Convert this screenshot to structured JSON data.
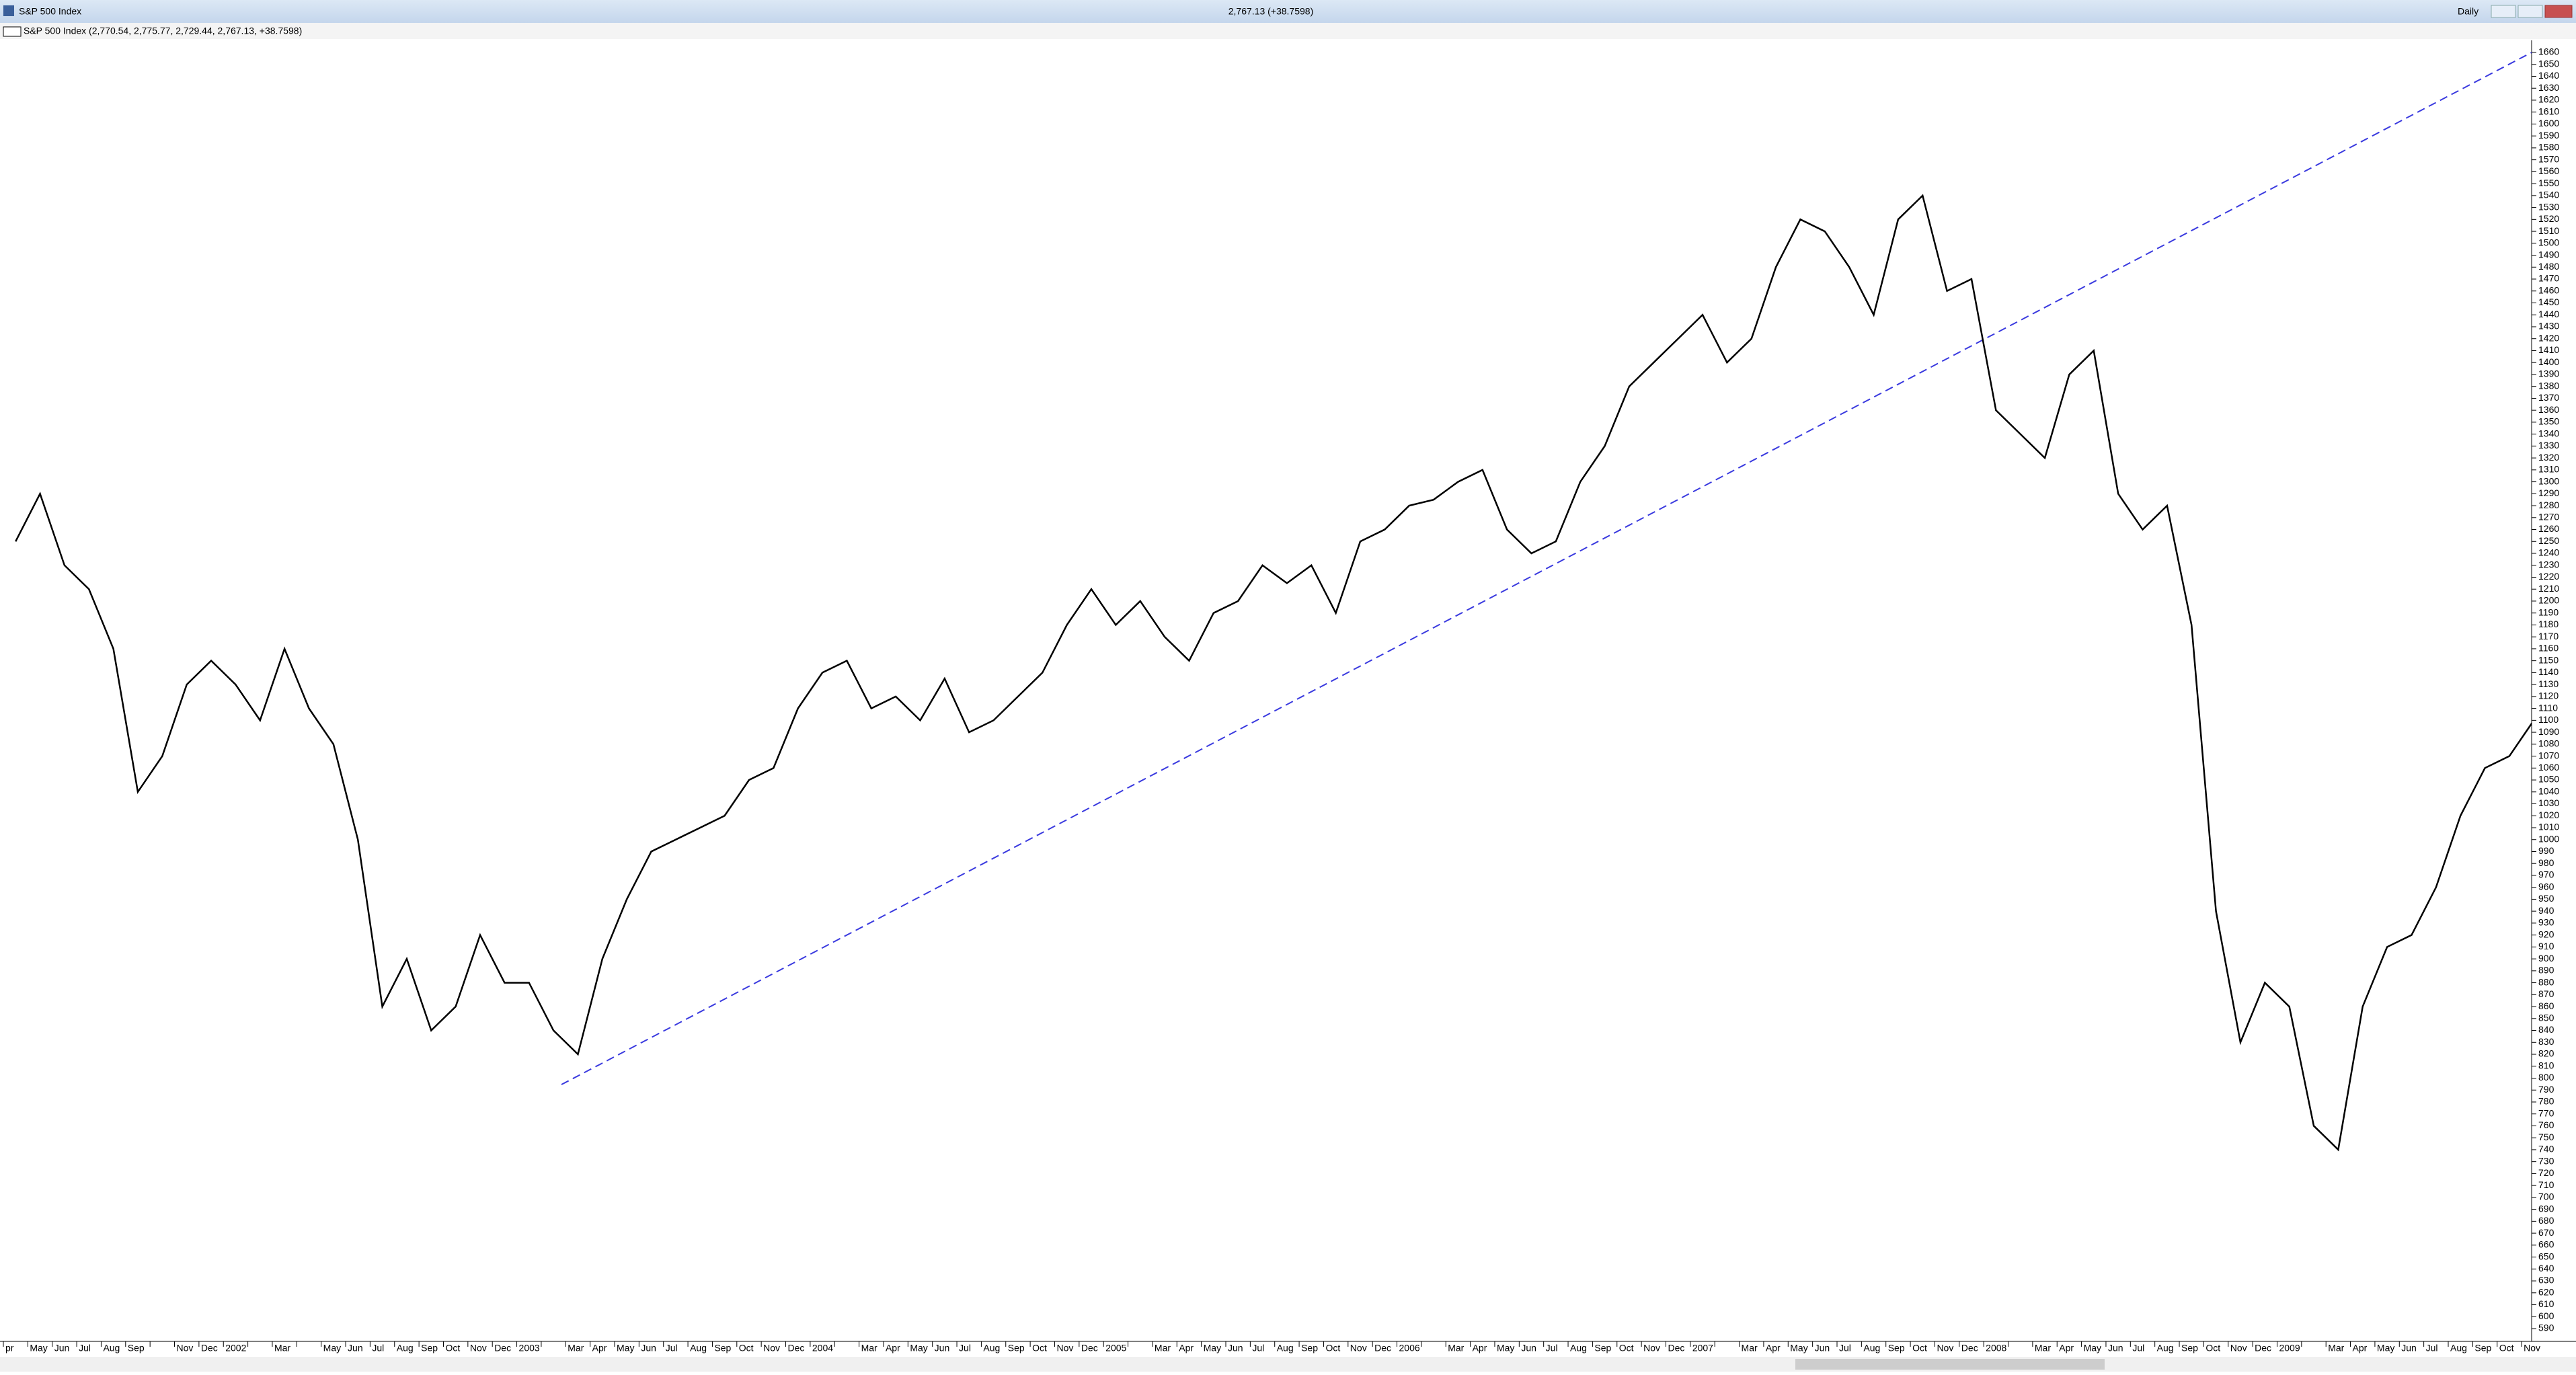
{
  "chart_data": {
    "type": "line",
    "title": "S&P 500 Index",
    "status": "2,767.13 (+38.7598)",
    "period": "Daily",
    "subtitle": "S&P 500 Index (2,770.54, 2,775.77, 2,729.44, 2,767.13, +38.7598)",
    "categories": [
      "pr",
      "May",
      "Jun",
      "Jul",
      "Aug",
      "Sep",
      null,
      "Nov",
      "Dec",
      "2002",
      null,
      "Mar",
      null,
      "May",
      "Jun",
      "Jul",
      "Aug",
      "Sep",
      "Oct",
      "Nov",
      "Dec",
      "2003",
      null,
      "Mar",
      "Apr",
      "May",
      "Jun",
      "Jul",
      "Aug",
      "Sep",
      "Oct",
      "Nov",
      "Dec",
      "2004",
      null,
      "Mar",
      "Apr",
      "May",
      "Jun",
      "Jul",
      "Aug",
      "Sep",
      "Oct",
      "Nov",
      "Dec",
      "2005",
      null,
      "Mar",
      "Apr",
      "May",
      "Jun",
      "Jul",
      "Aug",
      "Sep",
      "Oct",
      "Nov",
      "Dec",
      "2006",
      null,
      "Mar",
      "Apr",
      "May",
      "Jun",
      "Jul",
      "Aug",
      "Sep",
      "Oct",
      "Nov",
      "Dec",
      "2007",
      null,
      "Mar",
      "Apr",
      "May",
      "Jun",
      "Jul",
      "Aug",
      "Sep",
      "Oct",
      "Nov",
      "Dec",
      "2008",
      null,
      "Mar",
      "Apr",
      "May",
      "Jun",
      "Jul",
      "Aug",
      "Sep",
      "Oct",
      "Nov",
      "Dec",
      "2009",
      null,
      "Mar",
      "Apr",
      "May",
      "Jun",
      "Jul",
      "Aug",
      "Sep",
      "Oct",
      "Nov"
    ],
    "values": [
      1250,
      1290,
      1230,
      1210,
      1160,
      1040,
      1070,
      1130,
      1150,
      1130,
      1100,
      1160,
      1110,
      1080,
      1000,
      860,
      900,
      840,
      860,
      920,
      880,
      880,
      840,
      820,
      900,
      950,
      990,
      1000,
      1010,
      1020,
      1050,
      1060,
      1110,
      1140,
      1150,
      1110,
      1120,
      1100,
      1135,
      1090,
      1100,
      1120,
      1140,
      1180,
      1210,
      1180,
      1200,
      1170,
      1150,
      1190,
      1200,
      1230,
      1215,
      1230,
      1190,
      1250,
      1260,
      1280,
      1285,
      1300,
      1310,
      1260,
      1240,
      1250,
      1300,
      1330,
      1380,
      1400,
      1420,
      1440,
      1400,
      1420,
      1480,
      1520,
      1510,
      1480,
      1440,
      1520,
      1540,
      1460,
      1470,
      1360,
      1340,
      1320,
      1390,
      1410,
      1290,
      1260,
      1280,
      1180,
      940,
      830,
      880,
      860,
      760,
      740,
      860,
      910,
      920,
      960,
      1020,
      1060,
      1070,
      1100
    ],
    "color": "#000000",
    "ylim": [
      590,
      1660
    ],
    "yticks": [
      590,
      600,
      610,
      620,
      630,
      640,
      650,
      660,
      670,
      680,
      690,
      700,
      710,
      720,
      730,
      740,
      750,
      760,
      770,
      780,
      790,
      800,
      810,
      820,
      830,
      840,
      850,
      860,
      870,
      880,
      890,
      900,
      910,
      920,
      930,
      940,
      950,
      960,
      970,
      980,
      990,
      1000,
      1010,
      1020,
      1030,
      1040,
      1050,
      1060,
      1070,
      1080,
      1090,
      1100,
      1110,
      1120,
      1130,
      1140,
      1150,
      1160,
      1170,
      1180,
      1190,
      1200,
      1210,
      1220,
      1230,
      1240,
      1250,
      1260,
      1270,
      1280,
      1290,
      1300,
      1310,
      1320,
      1330,
      1340,
      1350,
      1360,
      1370,
      1380,
      1390,
      1400,
      1410,
      1420,
      1430,
      1440,
      1450,
      1460,
      1470,
      1480,
      1490,
      1500,
      1510,
      1520,
      1530,
      1540,
      1550,
      1560,
      1570,
      1580,
      1590,
      1600,
      1610,
      1620,
      1630,
      1640,
      1650,
      1660
    ],
    "grid": false
  }
}
